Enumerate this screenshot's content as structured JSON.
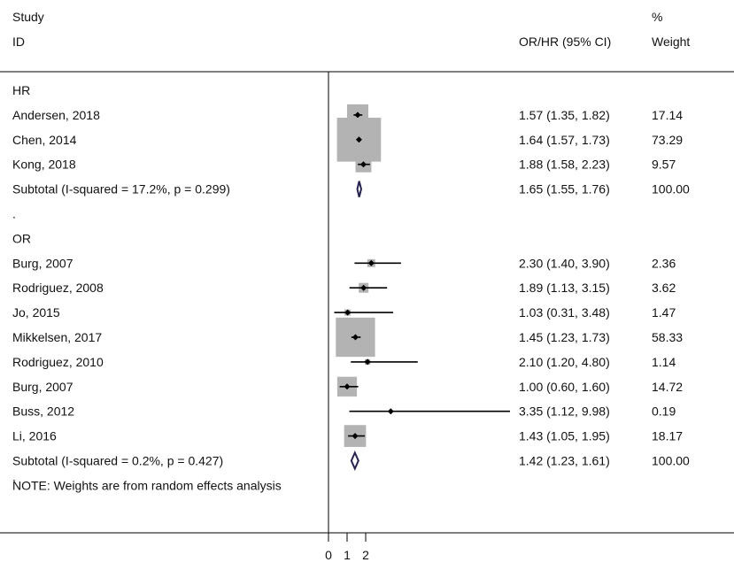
{
  "chart_data": {
    "type": "forest",
    "header": {
      "col1_line1": "Study",
      "col1_line2": "ID",
      "col2": "OR/HR (95% CI)",
      "col3_line1": "%",
      "col3_line2": "Weight"
    },
    "x_ticks": [
      "0",
      "1",
      "2"
    ],
    "tick_values": [
      0,
      1,
      2
    ],
    "null_line": 0,
    "rows": [
      {
        "kind": "group",
        "label": "HR"
      },
      {
        "kind": "study",
        "label": "Andersen, 2018",
        "est": 1.57,
        "lo": 1.35,
        "hi": 1.82,
        "ci_text": "1.57 (1.35, 1.82)",
        "weight": 17.14,
        "weight_text": "17.14"
      },
      {
        "kind": "study",
        "label": "Chen, 2014",
        "est": 1.64,
        "lo": 1.57,
        "hi": 1.73,
        "ci_text": "1.64 (1.57, 1.73)",
        "weight": 73.29,
        "weight_text": "73.29"
      },
      {
        "kind": "study",
        "label": "Kong, 2018",
        "est": 1.88,
        "lo": 1.58,
        "hi": 2.23,
        "ci_text": "1.88 (1.58, 2.23)",
        "weight": 9.57,
        "weight_text": "9.57"
      },
      {
        "kind": "subtotal",
        "label": "Subtotal  (I-squared = 17.2%, p = 0.299)",
        "est": 1.65,
        "lo": 1.55,
        "hi": 1.76,
        "ci_text": "1.65 (1.55, 1.76)",
        "weight_text": "100.00"
      },
      {
        "kind": "dot",
        "label": "."
      },
      {
        "kind": "group",
        "label": "OR"
      },
      {
        "kind": "study",
        "label": "Burg, 2007",
        "est": 2.3,
        "lo": 1.4,
        "hi": 3.9,
        "ci_text": "2.30 (1.40, 3.90)",
        "weight": 2.36,
        "weight_text": "2.36"
      },
      {
        "kind": "study",
        "label": "Rodriguez, 2008",
        "est": 1.89,
        "lo": 1.13,
        "hi": 3.15,
        "ci_text": "1.89 (1.13, 3.15)",
        "weight": 3.62,
        "weight_text": "3.62"
      },
      {
        "kind": "study",
        "label": "Jo, 2015",
        "est": 1.03,
        "lo": 0.31,
        "hi": 3.48,
        "ci_text": "1.03 (0.31, 3.48)",
        "weight": 1.47,
        "weight_text": "1.47"
      },
      {
        "kind": "study",
        "label": "Mikkelsen, 2017",
        "est": 1.45,
        "lo": 1.23,
        "hi": 1.73,
        "ci_text": "1.45 (1.23, 1.73)",
        "weight": 58.33,
        "weight_text": "58.33"
      },
      {
        "kind": "study",
        "label": "Rodriguez, 2010",
        "est": 2.1,
        "lo": 1.2,
        "hi": 4.8,
        "ci_text": "2.10 (1.20, 4.80)",
        "weight": 1.14,
        "weight_text": "1.14"
      },
      {
        "kind": "study",
        "label": "Burg, 2007",
        "est": 1.0,
        "lo": 0.6,
        "hi": 1.6,
        "ci_text": "1.00 (0.60, 1.60)",
        "weight": 14.72,
        "weight_text": "14.72"
      },
      {
        "kind": "study",
        "label": "Buss, 2012",
        "est": 3.35,
        "lo": 1.12,
        "hi": 9.98,
        "ci_text": "3.35 (1.12, 9.98)",
        "weight": 0.19,
        "weight_text": "0.19"
      },
      {
        "kind": "study",
        "label": "Li, 2016",
        "est": 1.43,
        "lo": 1.05,
        "hi": 1.95,
        "ci_text": "1.43 (1.05, 1.95)",
        "weight": 18.17,
        "weight_text": "18.17"
      },
      {
        "kind": "subtotal",
        "label": "Subtotal  (I-squared = 0.2%, p = 0.427)",
        "est": 1.42,
        "lo": 1.23,
        "hi": 1.61,
        "ci_text": "1.42 (1.23, 1.61)",
        "weight_text": "100.00"
      },
      {
        "kind": "note",
        "dot": ".",
        "label": "NOTE: Weights are from random effects analysis"
      }
    ],
    "colors": {
      "box": "#b3b3b3",
      "line": "#000000",
      "diamond": "#26244f",
      "text": "#111111"
    }
  }
}
